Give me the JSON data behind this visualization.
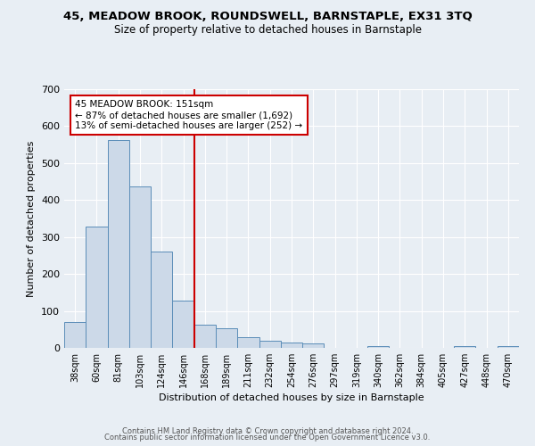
{
  "title": "45, MEADOW BROOK, ROUNDSWELL, BARNSTAPLE, EX31 3TQ",
  "subtitle": "Size of property relative to detached houses in Barnstaple",
  "xlabel": "Distribution of detached houses by size in Barnstaple",
  "ylabel": "Number of detached properties",
  "bin_labels": [
    "38sqm",
    "60sqm",
    "81sqm",
    "103sqm",
    "124sqm",
    "146sqm",
    "168sqm",
    "189sqm",
    "211sqm",
    "232sqm",
    "254sqm",
    "276sqm",
    "297sqm",
    "319sqm",
    "340sqm",
    "362sqm",
    "384sqm",
    "405sqm",
    "427sqm",
    "448sqm",
    "470sqm"
  ],
  "bin_values": [
    70,
    328,
    562,
    437,
    260,
    128,
    63,
    52,
    30,
    20,
    15,
    13,
    0,
    0,
    5,
    0,
    0,
    0,
    6,
    0,
    6
  ],
  "bar_color": "#ccd9e8",
  "bar_edge_color": "#5b8db8",
  "property_line_x": 5.5,
  "annotation_text": "45 MEADOW BROOK: 151sqm\n← 87% of detached houses are smaller (1,692)\n13% of semi-detached houses are larger (252) →",
  "annotation_box_color": "#ffffff",
  "annotation_box_edge_color": "#cc0000",
  "vline_color": "#cc0000",
  "background_color": "#e8eef4",
  "grid_color": "#ffffff",
  "ylim": [
    0,
    700
  ],
  "yticks": [
    0,
    100,
    200,
    300,
    400,
    500,
    600,
    700
  ],
  "footer1": "Contains HM Land Registry data © Crown copyright and database right 2024.",
  "footer2": "Contains public sector information licensed under the Open Government Licence v3.0."
}
